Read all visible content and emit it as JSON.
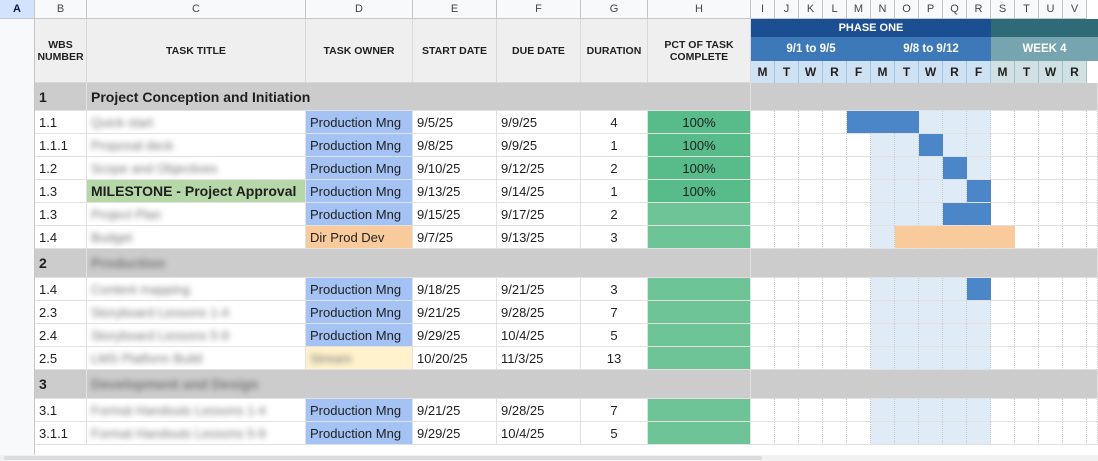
{
  "columns": [
    "A",
    "B",
    "C",
    "D",
    "E",
    "F",
    "G",
    "H",
    "I",
    "J",
    "K",
    "L",
    "M",
    "N",
    "O",
    "P",
    "Q",
    "R",
    "S",
    "T",
    "U",
    "V"
  ],
  "headers": {
    "wbs": "WBS NUMBER",
    "task": "TASK TITLE",
    "owner": "TASK OWNER",
    "start": "START DATE",
    "due": "DUE DATE",
    "duration": "DURATION",
    "pct": "PCT OF TASK COMPLETE"
  },
  "timeline": {
    "phase": "PHASE ONE",
    "weeks": [
      "9/1 to 9/5",
      "9/8 to 9/12",
      "WEEK 4"
    ],
    "days": [
      "M",
      "T",
      "W",
      "R",
      "F",
      "M",
      "T",
      "W",
      "R",
      "F",
      "M",
      "T",
      "W",
      "R"
    ]
  },
  "rows": [
    {
      "type": "section",
      "wbs": "1",
      "task": "Project Conception and Initiation"
    },
    {
      "type": "task",
      "wbs": "1.1",
      "task": "Quick start",
      "owner": "Production Mng",
      "start": "9/5/25",
      "due": "9/9/25",
      "duration": "4",
      "pct": "100%"
    },
    {
      "type": "task",
      "wbs": "1.1.1",
      "task": "Proposal deck",
      "owner": "Production Mng",
      "start": "9/8/25",
      "due": "9/9/25",
      "duration": "1",
      "pct": "100%"
    },
    {
      "type": "task",
      "wbs": "1.2",
      "task": "Scope and Objectives",
      "owner": "Production Mng",
      "start": "9/10/25",
      "due": "9/12/25",
      "duration": "2",
      "pct": "100%"
    },
    {
      "type": "milestone",
      "wbs": "1.3",
      "task": "MILESTONE - Project Approval",
      "owner": "Production Mng",
      "start": "9/13/25",
      "due": "9/14/25",
      "duration": "1",
      "pct": "100%"
    },
    {
      "type": "task",
      "wbs": "1.3",
      "task": "Project Plan",
      "owner": "Production Mng",
      "start": "9/15/25",
      "due": "9/17/25",
      "duration": "2",
      "pct": ""
    },
    {
      "type": "task",
      "wbs": "1.4",
      "task": "Budget",
      "owner": "Dir Prod Dev",
      "start": "9/7/25",
      "due": "9/13/25",
      "duration": "3",
      "pct": ""
    },
    {
      "type": "section",
      "wbs": "2",
      "task": "Production"
    },
    {
      "type": "task",
      "wbs": "1.4",
      "task": "Content mapping",
      "owner": "Production Mng",
      "start": "9/18/25",
      "due": "9/21/25",
      "duration": "3",
      "pct": ""
    },
    {
      "type": "task",
      "wbs": "2.3",
      "task": "Storyboard Lessons 1-4",
      "owner": "Production Mng",
      "start": "9/21/25",
      "due": "9/28/25",
      "duration": "7",
      "pct": ""
    },
    {
      "type": "task",
      "wbs": "2.4",
      "task": "Storyboard Lessons 5-9",
      "owner": "Production Mng",
      "start": "9/29/25",
      "due": "10/4/25",
      "duration": "5",
      "pct": ""
    },
    {
      "type": "task",
      "wbs": "2.5",
      "task": "LMS Platform Build",
      "owner": "Stream",
      "start": "10/20/25",
      "due": "11/3/25",
      "duration": "13",
      "pct": ""
    },
    {
      "type": "section",
      "wbs": "3",
      "task": "Development and Design"
    },
    {
      "type": "task",
      "wbs": "3.1",
      "task": "Format Handouts Lessons 1-4",
      "owner": "Production Mng",
      "start": "9/21/25",
      "due": "9/28/25",
      "duration": "7",
      "pct": ""
    },
    {
      "type": "task",
      "wbs": "3.1.1",
      "task": "Format Handouts Lessons 5-9",
      "owner": "Production Mng",
      "start": "9/29/25",
      "due": "10/4/25",
      "duration": "5",
      "pct": ""
    }
  ],
  "colors": {
    "phase_bg": "#1c4f91",
    "week_blue": "#3d78b8",
    "week_teal": "#76a5af",
    "gantt_bar_blue": "#4a86c8",
    "gantt_bar_orange": "#f9cb9c",
    "pct_done": "#57bb8a",
    "pct_open": "#6fc497",
    "owner_blue": "#a4c2f4",
    "milestone_green": "#b6d7a8"
  }
}
